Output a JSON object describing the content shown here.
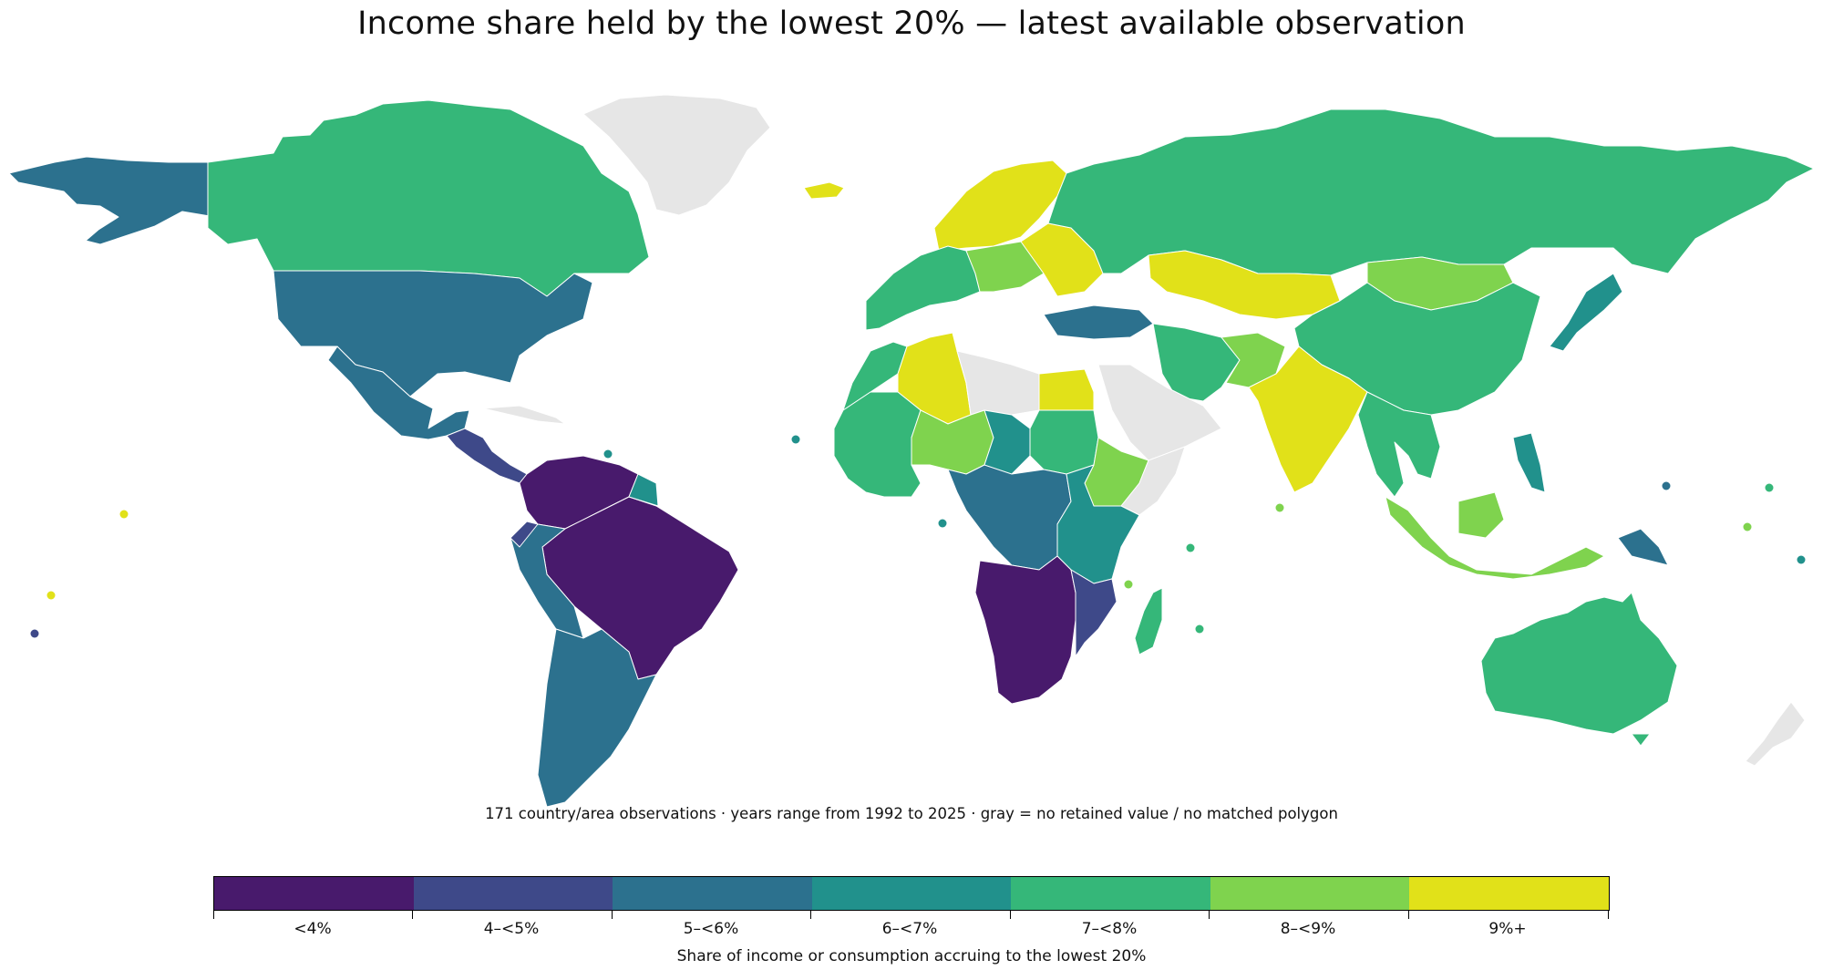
{
  "title": "Income share held by the lowest 20% — latest available observation",
  "note": "171 country/area observations · years range from 1992 to 2025 · gray = no retained value / no matched polygon",
  "legend": {
    "axis_label": "Share of income or consumption accruing to the lowest 20%",
    "classes": [
      {
        "label": "<4%",
        "color": "#481a6c"
      },
      {
        "label": "4–<5%",
        "color": "#3e4989"
      },
      {
        "label": "5–<6%",
        "color": "#2c718e"
      },
      {
        "label": "6–<7%",
        "color": "#21918c"
      },
      {
        "label": "7–<8%",
        "color": "#35b779"
      },
      {
        "label": "8–<9%",
        "color": "#7fd34e"
      },
      {
        "label": "9%+",
        "color": "#e1e119"
      }
    ],
    "no_data_color": "#e6e6e6"
  },
  "regions": [
    {
      "name": "Alaska (USA)",
      "class": 2
    },
    {
      "name": "Canada",
      "class": 4
    },
    {
      "name": "Greenland",
      "class": -1
    },
    {
      "name": "Iceland",
      "class": 6
    },
    {
      "name": "USA",
      "class": 2
    },
    {
      "name": "Mexico",
      "class": 2
    },
    {
      "name": "Central America",
      "class": 1
    },
    {
      "name": "Colombia / Venezuela",
      "class": 0
    },
    {
      "name": "Brazil",
      "class": 0
    },
    {
      "name": "Guianas",
      "class": 3
    },
    {
      "name": "Andes (Peru / Bolivia)",
      "class": 2
    },
    {
      "name": "Southern Cone",
      "class": 2
    },
    {
      "name": "Ecuador",
      "class": 1
    },
    {
      "name": "Cuba",
      "class": -1
    },
    {
      "name": "Scandinavia",
      "class": 6
    },
    {
      "name": "Western Europe",
      "class": 4
    },
    {
      "name": "Central Europe",
      "class": 5
    },
    {
      "name": "Eastern Europe",
      "class": 6
    },
    {
      "name": "Turkey",
      "class": 2
    },
    {
      "name": "Russia",
      "class": 4
    },
    {
      "name": "Kazakhstan",
      "class": 6
    },
    {
      "name": "Mongolia",
      "class": 5
    },
    {
      "name": "China",
      "class": 4
    },
    {
      "name": "Japan",
      "class": 3
    },
    {
      "name": "Iran",
      "class": 4
    },
    {
      "name": "Arabian Peninsula",
      "class": -1
    },
    {
      "name": "Pakistan",
      "class": 5
    },
    {
      "name": "India",
      "class": 6
    },
    {
      "name": "Southeast Asia",
      "class": 4
    },
    {
      "name": "Philippines",
      "class": 3
    },
    {
      "name": "Indonesia",
      "class": 5
    },
    {
      "name": "Papua New Guinea",
      "class": 2
    },
    {
      "name": "Australia",
      "class": 4
    },
    {
      "name": "New Zealand",
      "class": -1
    },
    {
      "name": "Morocco",
      "class": 4
    },
    {
      "name": "Algeria",
      "class": 6
    },
    {
      "name": "Libya",
      "class": -1
    },
    {
      "name": "Egypt",
      "class": 6
    },
    {
      "name": "West Africa",
      "class": 4
    },
    {
      "name": "Niger / Nigeria",
      "class": 5
    },
    {
      "name": "Chad",
      "class": 3
    },
    {
      "name": "Sudan",
      "class": 4
    },
    {
      "name": "Ethiopia",
      "class": 5
    },
    {
      "name": "Somalia",
      "class": -1
    },
    {
      "name": "Central Africa",
      "class": 2
    },
    {
      "name": "East Africa",
      "class": 3
    },
    {
      "name": "Southern Africa",
      "class": 0
    },
    {
      "name": "Mozambique",
      "class": 1
    },
    {
      "name": "Madagascar",
      "class": 4
    }
  ]
}
